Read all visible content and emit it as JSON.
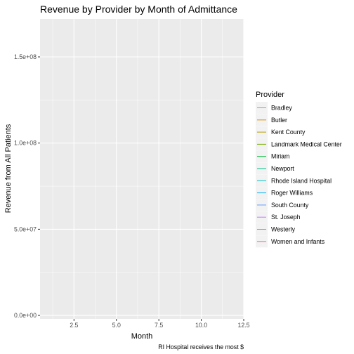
{
  "chart_data": {
    "type": "line",
    "title": "Revenue by Provider by Month of Admittance",
    "xlabel": "Month",
    "ylabel": "Revenue from All Patients",
    "caption": "RI Hospital receives the most $",
    "xlim": [
      0.5,
      12.5
    ],
    "ylim": [
      -2000000,
      172000000
    ],
    "x_ticks": [
      2.5,
      5.0,
      7.5,
      10.0,
      12.5
    ],
    "x_tick_labels": [
      "2.5",
      "5.0",
      "7.5",
      "10.0",
      "12.5"
    ],
    "y_ticks": [
      0,
      50000000,
      100000000,
      150000000
    ],
    "y_tick_labels": [
      "0.0e+00",
      "5.0e+07",
      "1.0e+08",
      "1.5e+08"
    ],
    "grid": true,
    "legend_position": "right",
    "legend_title": "Provider",
    "series": [
      {
        "name": "Bradley",
        "color": "#F8766D",
        "values": []
      },
      {
        "name": "Butler",
        "color": "#DE8C00",
        "values": []
      },
      {
        "name": "Kent County",
        "color": "#B79F00",
        "values": []
      },
      {
        "name": "Landmark Medical Center",
        "color": "#7CAE00",
        "values": []
      },
      {
        "name": "Miriam",
        "color": "#00BA38",
        "values": []
      },
      {
        "name": "Newport",
        "color": "#00C08B",
        "values": []
      },
      {
        "name": "Rhode Island Hospital",
        "color": "#00BFC4",
        "values": []
      },
      {
        "name": "Roger Williams",
        "color": "#00B4F0",
        "values": []
      },
      {
        "name": "South County",
        "color": "#619CFF",
        "values": []
      },
      {
        "name": "St. Joseph",
        "color": "#C77CFF",
        "values": []
      },
      {
        "name": "Westerly",
        "color": "#F564E3",
        "values": []
      },
      {
        "name": "Women and Infants",
        "color": "#FF64B0",
        "values": []
      }
    ]
  }
}
